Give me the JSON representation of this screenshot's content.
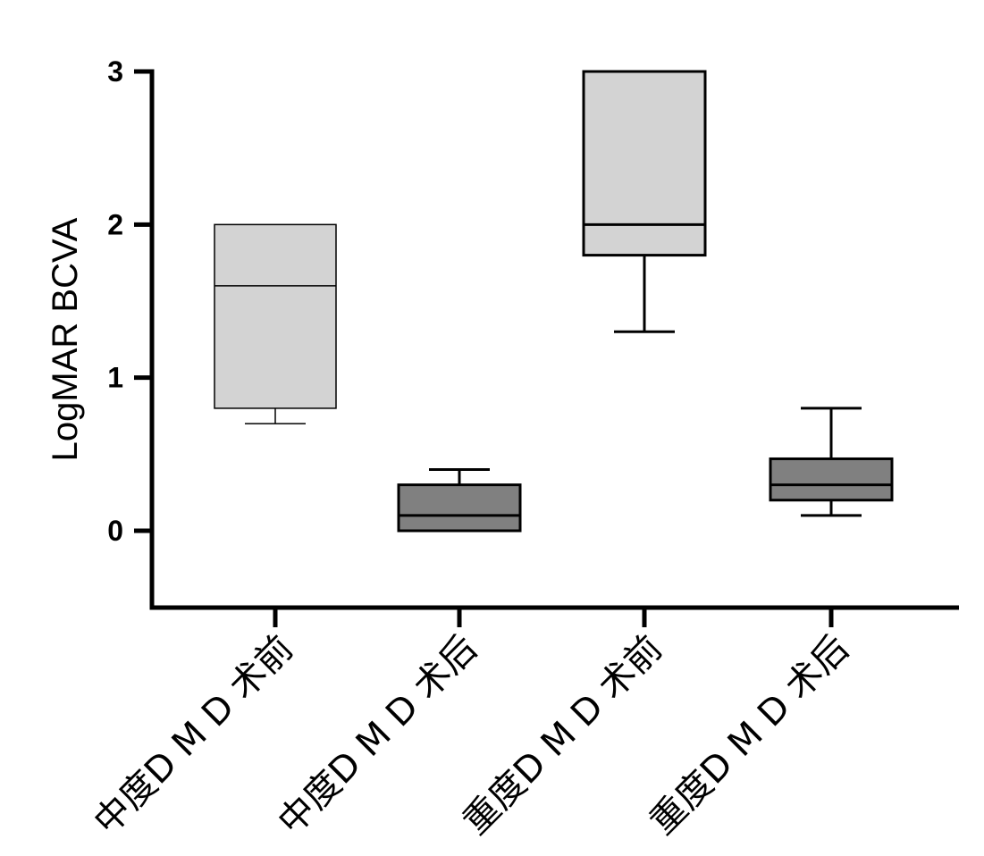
{
  "chart_data": {
    "type": "box",
    "title": "",
    "xlabel": "",
    "ylabel": "LogMAR BCVA",
    "ylim": [
      -0.5,
      3
    ],
    "yticks": [
      0,
      1,
      2,
      3
    ],
    "grid": false,
    "legend": "none",
    "categories": [
      "中度D M D 术前",
      "中度D M D 术后",
      "重度D M D 术前",
      "重度D M D 术后"
    ],
    "boxes": [
      {
        "category": "中度D M D 术前",
        "min": 0.7,
        "q1": 0.8,
        "median": 1.6,
        "q3": 2.0,
        "max": 2.0,
        "fill": "#d3d3d3"
      },
      {
        "category": "中度D M D 术后",
        "min": 0.0,
        "q1": 0.0,
        "median": 0.1,
        "q3": 0.3,
        "max": 0.4,
        "fill": "#808080"
      },
      {
        "category": "重度D M D 术前",
        "min": 1.3,
        "q1": 1.8,
        "median": 2.0,
        "q3": 3.0,
        "max": 3.0,
        "fill": "#d3d3d3"
      },
      {
        "category": "重度D M D 术后",
        "min": 0.1,
        "q1": 0.2,
        "median": 0.3,
        "q3": 0.47,
        "max": 0.8,
        "fill": "#808080"
      }
    ]
  }
}
